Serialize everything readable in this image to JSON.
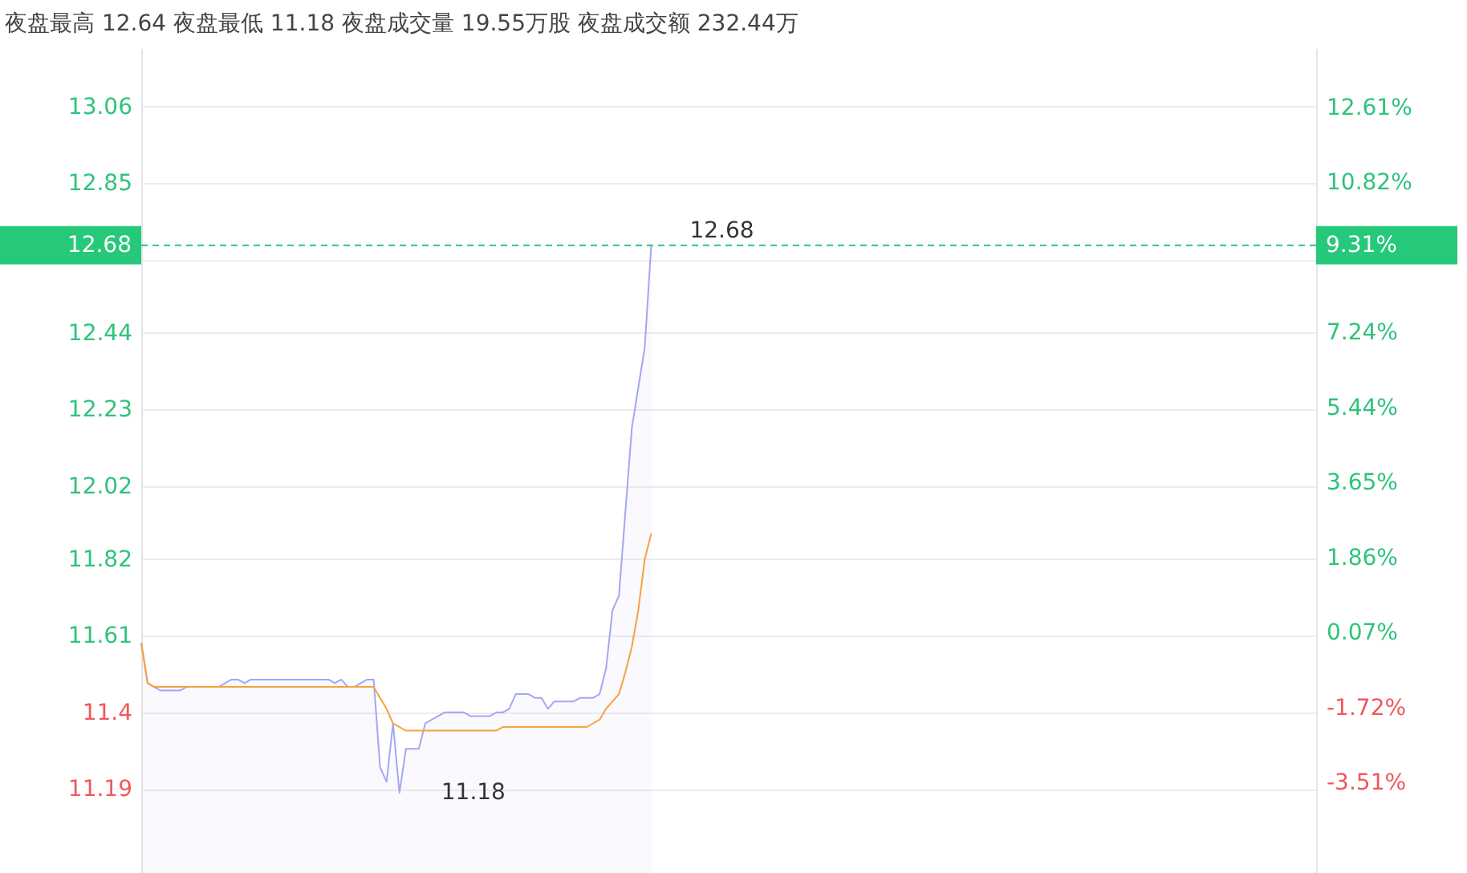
{
  "chart_data": {
    "type": "line",
    "title": "夜盘最高 12.64 夜盘最低 11.18 夜盘成交量 19.55万股 夜盘成交额 232.44万",
    "categories": [
      null,
      null,
      null,
      null,
      null,
      null,
      null,
      null,
      null,
      null,
      null,
      null,
      null,
      null,
      null,
      null,
      null,
      null,
      null,
      null,
      null,
      null,
      null,
      null,
      null,
      null,
      null,
      null,
      null,
      null,
      null,
      null,
      null,
      null,
      null,
      null,
      null,
      null,
      null,
      null,
      null,
      null,
      null,
      null,
      null,
      null,
      null,
      null,
      null,
      null,
      null,
      null,
      null,
      null,
      null,
      null,
      null,
      null,
      null,
      null,
      null,
      null,
      null,
      null,
      null,
      null,
      null,
      null,
      null,
      null,
      null,
      null,
      null,
      null,
      null,
      null,
      null,
      null,
      null,
      null,
      null,
      null,
      null,
      null,
      null,
      null,
      null,
      null,
      null,
      null,
      null,
      null,
      null,
      null,
      null,
      null,
      null,
      null,
      null,
      null,
      null,
      null,
      null,
      null,
      null,
      null,
      null,
      null,
      null,
      null,
      null,
      null,
      null,
      null,
      null,
      null,
      null,
      null,
      null,
      null,
      null,
      null,
      null,
      null,
      null,
      null,
      null,
      null,
      null,
      null,
      null,
      null,
      null,
      null,
      null,
      null,
      null,
      null,
      null,
      null,
      null,
      null,
      null,
      null,
      null,
      null,
      null,
      null,
      null,
      null,
      null,
      null,
      null,
      null,
      null,
      null,
      null,
      null,
      null,
      null,
      null,
      null,
      null,
      null,
      null,
      null,
      null,
      null,
      null,
      null,
      null,
      null,
      null,
      null,
      null,
      null,
      null,
      null,
      null,
      null,
      null,
      null,
      null
    ],
    "series": [
      {
        "type": "area",
        "color": "#a3a7f2",
        "values": [
          11.59,
          11.48,
          11.47,
          11.46,
          11.46,
          11.46,
          11.46,
          11.47,
          11.47,
          11.47,
          11.47,
          11.47,
          11.47,
          11.48,
          11.49,
          11.49,
          11.48,
          11.49,
          11.49,
          11.49,
          11.49,
          11.49,
          11.49,
          11.49,
          11.49,
          11.49,
          11.49,
          11.49,
          11.49,
          11.49,
          11.48,
          11.49,
          11.47,
          11.47,
          11.48,
          11.49,
          11.49,
          11.25,
          11.21,
          11.37,
          11.18,
          11.3,
          11.3,
          11.3,
          11.37,
          11.38,
          11.39,
          11.4,
          11.4,
          11.4,
          11.4,
          11.39,
          11.39,
          11.39,
          11.39,
          11.4,
          11.4,
          11.41,
          11.45,
          11.45,
          11.45,
          11.44,
          11.44,
          11.41,
          11.43,
          11.43,
          11.43,
          11.43,
          11.44,
          11.44,
          11.44,
          11.45,
          11.52,
          11.68,
          11.72,
          11.95,
          12.18,
          12.29,
          12.4,
          12.68,
          null,
          null,
          null,
          null,
          null,
          null,
          null,
          null,
          null,
          null,
          null,
          null,
          null,
          null,
          null,
          null,
          null,
          null,
          null,
          null,
          null,
          null,
          null,
          null,
          null,
          null,
          null,
          null,
          null,
          null,
          null,
          null,
          null,
          null,
          null,
          null,
          null,
          null,
          null,
          null,
          null,
          null,
          null,
          null,
          null,
          null,
          null,
          null,
          null,
          null,
          null,
          null,
          null,
          null,
          null,
          null,
          null,
          null,
          null,
          null,
          null,
          null,
          null,
          null,
          null,
          null,
          null,
          null,
          null,
          null,
          null,
          null,
          null,
          null,
          null,
          null,
          null,
          null,
          null,
          null,
          null,
          null,
          null,
          null,
          null,
          null,
          null,
          null,
          null,
          null,
          null,
          null,
          null,
          null,
          null,
          null,
          null,
          null,
          null,
          null,
          null,
          null,
          null
        ]
      },
      {
        "color": "#f7a13e",
        "values": [
          11.59,
          11.48,
          11.47,
          11.47,
          11.47,
          11.47,
          11.47,
          11.47,
          11.47,
          11.47,
          11.47,
          11.47,
          11.47,
          11.47,
          11.47,
          11.47,
          11.47,
          11.47,
          11.47,
          11.47,
          11.47,
          11.47,
          11.47,
          11.47,
          11.47,
          11.47,
          11.47,
          11.47,
          11.47,
          11.47,
          11.47,
          11.47,
          11.47,
          11.47,
          11.47,
          11.47,
          11.47,
          11.44,
          11.41,
          11.37,
          11.36,
          11.35,
          11.35,
          11.35,
          11.35,
          11.35,
          11.35,
          11.35,
          11.35,
          11.35,
          11.35,
          11.35,
          11.35,
          11.35,
          11.35,
          11.35,
          11.36,
          11.36,
          11.36,
          11.36,
          11.36,
          11.36,
          11.36,
          11.36,
          11.36,
          11.36,
          11.36,
          11.36,
          11.36,
          11.36,
          11.37,
          11.38,
          11.41,
          11.43,
          11.45,
          11.51,
          11.58,
          11.68,
          11.82,
          11.89,
          null,
          null,
          null,
          null,
          null,
          null,
          null,
          null,
          null,
          null,
          null,
          null,
          null,
          null,
          null,
          null,
          null,
          null,
          null,
          null,
          null,
          null,
          null,
          null,
          null,
          null,
          null,
          null,
          null,
          null,
          null,
          null,
          null,
          null,
          null,
          null,
          null,
          null,
          null,
          null,
          null,
          null,
          null,
          null,
          null,
          null,
          null,
          null,
          null,
          null,
          null,
          null,
          null,
          null,
          null,
          null,
          null,
          null,
          null,
          null,
          null,
          null,
          null,
          null,
          null,
          null,
          null,
          null,
          null,
          null,
          null,
          null,
          null,
          null,
          null,
          null,
          null,
          null,
          null,
          null,
          null,
          null,
          null,
          null,
          null,
          null,
          null,
          null,
          null,
          null,
          null,
          null,
          null,
          null,
          null,
          null,
          null,
          null,
          null,
          null,
          null,
          null,
          null
        ]
      }
    ],
    "ylim": [
      10.96,
      13.22
    ],
    "yticks": [
      13.06,
      12.85,
      {
        "value": 12.64,
        "label": null
      },
      12.44,
      12.23,
      12.02,
      11.82,
      11.61,
      11.4,
      11.19
    ],
    "y2lim": [
      -5.67,
      14.02
    ],
    "y2ticks": [
      {
        "value": 12.61,
        "label": "12.61%"
      },
      {
        "value": 10.82,
        "label": "10.82%"
      },
      {
        "value": 9.03,
        "label": null
      },
      {
        "value": 7.24,
        "label": "7.24%"
      },
      {
        "value": 5.44,
        "label": "5.44%"
      },
      {
        "value": 3.65,
        "label": "3.65%"
      },
      {
        "value": 1.86,
        "label": "1.86%"
      },
      {
        "value": 0.07,
        "label": "0.07%"
      },
      {
        "value": -1.72,
        "label": "-1.72%"
      },
      {
        "value": -3.51,
        "label": "-3.51%"
      }
    ],
    "grid": "y",
    "tick_labels": "y",
    "ref_lines": [
      {
        "axis": "y",
        "value": 12.68,
        "label": "12.68",
        "color": "#26c87a",
        "line_style": "dashed"
      }
    ],
    "annotations": [
      {
        "text": "12.68",
        "y": 12.68
      },
      "11.18",
      "9.31%"
    ]
  }
}
